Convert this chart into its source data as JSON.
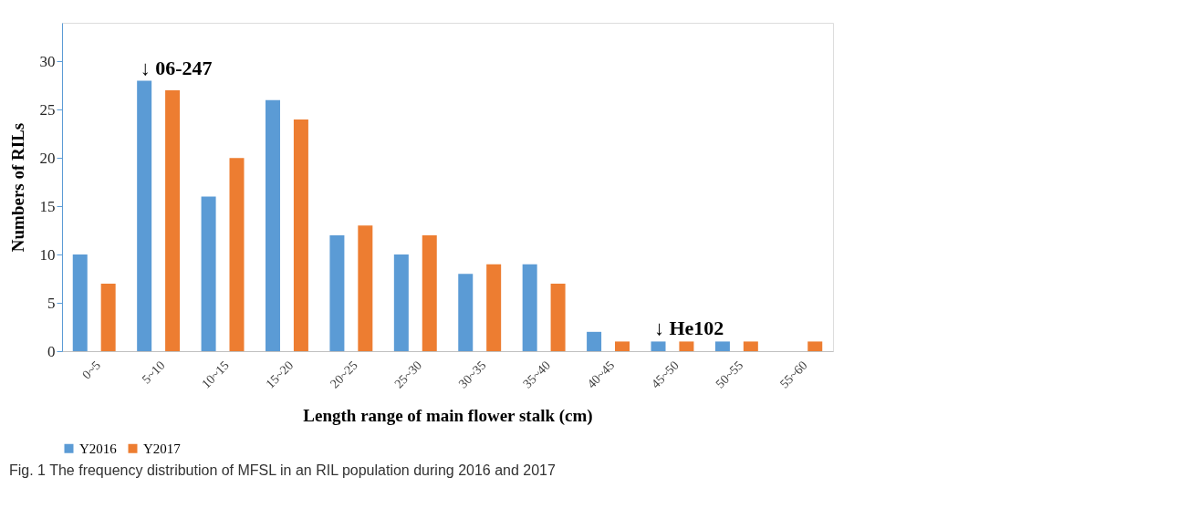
{
  "chart_data": {
    "type": "bar",
    "xlabel": "Length range of main flower stalk (cm)",
    "ylabel": "Numbers of RILs",
    "categories": [
      "0~5",
      "5~10",
      "10~15",
      "15~20",
      "20~25",
      "25~30",
      "30~35",
      "35~40",
      "40~45",
      "45~50",
      "50~55",
      "55~60"
    ],
    "series": [
      {
        "name": "Y2016",
        "color": "#5b9bd5",
        "values": [
          10,
          28,
          16,
          26,
          12,
          10,
          8,
          9,
          2,
          1,
          1,
          0
        ]
      },
      {
        "name": "Y2017",
        "color": "#ed7d31",
        "values": [
          7,
          27,
          20,
          24,
          13,
          12,
          9,
          7,
          1,
          1,
          1,
          1
        ]
      }
    ],
    "ylim": [
      0,
      34
    ],
    "yticks": [
      0,
      5,
      10,
      15,
      20,
      25,
      30
    ],
    "grid": false,
    "legend": "bottom",
    "annotations": [
      {
        "text": "↓ 06-247",
        "x": "5~10",
        "y": 28
      },
      {
        "text": "↓ He102",
        "x": "45~50",
        "y": 1
      },
      "Fig. 1 The frequency distribution of MFSL in an RIL population during 2016 and 2017"
    ]
  }
}
